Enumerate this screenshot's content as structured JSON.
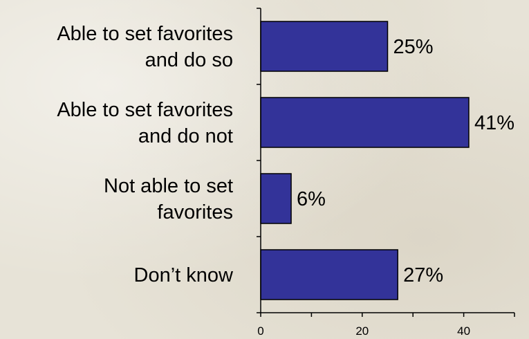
{
  "chart_data": {
    "type": "bar",
    "orientation": "horizontal",
    "categories": [
      [
        "Able to set favorites",
        "and do so"
      ],
      [
        "Able to set favorites",
        "and do not"
      ],
      [
        "Not able to set",
        "favorites"
      ],
      [
        "Don’t know"
      ]
    ],
    "values": [
      25,
      41,
      6,
      27
    ],
    "value_labels": [
      "25%",
      "41%",
      "6%",
      "27%"
    ],
    "xlim": [
      0,
      50
    ],
    "xticks": [
      0,
      20,
      40
    ],
    "title": "",
    "xlabel": "",
    "ylabel": "",
    "grid": false,
    "bar_color": "#333399",
    "bar_edge_color": "#000000"
  }
}
